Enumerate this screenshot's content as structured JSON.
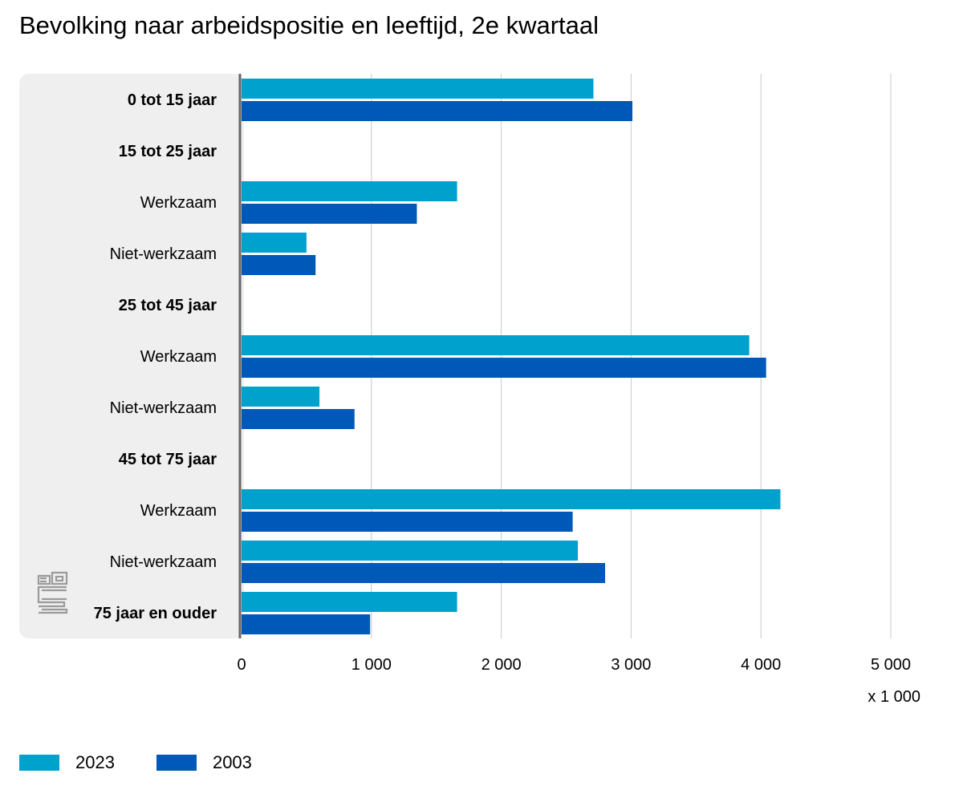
{
  "title": "Bevolking naar arbeidspositie en leeftijd, 2e kwartaal",
  "colors": {
    "s2023": "#00a1cd",
    "s2003": "#0058b8",
    "panel": "#efefef",
    "axis": "#666666",
    "grid": "#c8c8c8"
  },
  "chart_data": {
    "type": "bar",
    "orientation": "horizontal",
    "title": "Bevolking naar arbeidspositie en leeftijd, 2e kwartaal",
    "unit_label": "x 1 000",
    "xlim": [
      0,
      5000
    ],
    "ticks": [
      0,
      1000,
      2000,
      3000,
      4000,
      5000
    ],
    "tick_labels": [
      "0",
      "1 000",
      "2 000",
      "3 000",
      "4 000",
      "5 000"
    ],
    "grid": true,
    "legend_position": "bottom-left",
    "categories": [
      {
        "label": "0 tot 15 jaar",
        "bold": true
      },
      {
        "label": "15 tot 25 jaar",
        "bold": true
      },
      {
        "label": "Werkzaam",
        "bold": false
      },
      {
        "label": "Niet-werkzaam",
        "bold": false
      },
      {
        "label": "25 tot 45 jaar",
        "bold": true
      },
      {
        "label": "Werkzaam",
        "bold": false
      },
      {
        "label": "Niet-werkzaam",
        "bold": false
      },
      {
        "label": "45 tot 75 jaar",
        "bold": true
      },
      {
        "label": "Werkzaam",
        "bold": false
      },
      {
        "label": "Niet-werkzaam",
        "bold": false
      },
      {
        "label": "75 jaar en ouder",
        "bold": true
      }
    ],
    "series": [
      {
        "name": "2023",
        "color": "#00a1cd",
        "values": [
          2710,
          null,
          1660,
          500,
          null,
          3910,
          600,
          null,
          4150,
          2590,
          1660
        ]
      },
      {
        "name": "2003",
        "color": "#0058b8",
        "values": [
          3010,
          null,
          1350,
          570,
          null,
          4040,
          870,
          null,
          2550,
          2800,
          990
        ]
      }
    ]
  }
}
